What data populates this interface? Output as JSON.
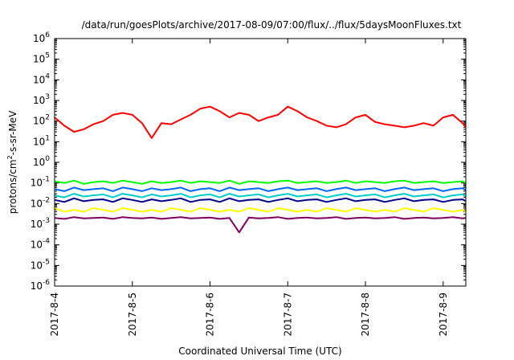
{
  "chart_data": {
    "type": "line",
    "title": "/data/run/goesPlots/archive/2017-08-09/07:00/flux/../flux/5daysMoonFluxes.txt",
    "xlabel": "Coordinated Universal Time (UTC)",
    "ylabel_prefix": "protons/cm",
    "ylabel_sup": "2",
    "ylabel_suffix": "-s-sr-MeV",
    "y_scale": "log",
    "ylim": [
      1e-06,
      1000000
    ],
    "y_ticks": [
      {
        "base": "10",
        "exp": "-6",
        "value": 1e-06
      },
      {
        "base": "10",
        "exp": "-5",
        "value": 1e-05
      },
      {
        "base": "10",
        "exp": "-4",
        "value": 0.0001
      },
      {
        "base": "10",
        "exp": "-3",
        "value": 0.001
      },
      {
        "base": "10",
        "exp": "-2",
        "value": 0.01
      },
      {
        "base": "10",
        "exp": "-1",
        "value": 0.1
      },
      {
        "base": "10",
        "exp": "0",
        "value": 1
      },
      {
        "base": "10",
        "exp": "1",
        "value": 10
      },
      {
        "base": "10",
        "exp": "2",
        "value": 100
      },
      {
        "base": "10",
        "exp": "3",
        "value": 1000
      },
      {
        "base": "10",
        "exp": "4",
        "value": 10000
      },
      {
        "base": "10",
        "exp": "5",
        "value": 100000
      },
      {
        "base": "10",
        "exp": "6",
        "value": 1000000
      }
    ],
    "xlim": [
      "2017-08-04T00:00",
      "2017-08-09T07:00"
    ],
    "x_tick_labels": [
      "2017-8-4",
      "2017-8-5",
      "2017-8-6",
      "2017-8-7",
      "2017-8-8",
      "2017-8-9"
    ],
    "x_tick_values": [
      "2017-08-04",
      "2017-08-05",
      "2017-08-06",
      "2017-08-07",
      "2017-08-08",
      "2017-08-09"
    ],
    "grid": false,
    "legend": "none",
    "x": [
      "2017-08-04T00:00",
      "2017-08-04T03:00",
      "2017-08-04T06:00",
      "2017-08-04T09:00",
      "2017-08-04T12:00",
      "2017-08-04T15:00",
      "2017-08-04T18:00",
      "2017-08-04T21:00",
      "2017-08-05T00:00",
      "2017-08-05T03:00",
      "2017-08-05T06:00",
      "2017-08-05T09:00",
      "2017-08-05T12:00",
      "2017-08-05T15:00",
      "2017-08-05T18:00",
      "2017-08-05T21:00",
      "2017-08-06T00:00",
      "2017-08-06T03:00",
      "2017-08-06T06:00",
      "2017-08-06T09:00",
      "2017-08-06T12:00",
      "2017-08-06T15:00",
      "2017-08-06T18:00",
      "2017-08-06T21:00",
      "2017-08-07T00:00",
      "2017-08-07T03:00",
      "2017-08-07T06:00",
      "2017-08-07T09:00",
      "2017-08-07T12:00",
      "2017-08-07T15:00",
      "2017-08-07T18:00",
      "2017-08-07T21:00",
      "2017-08-08T00:00",
      "2017-08-08T03:00",
      "2017-08-08T06:00",
      "2017-08-08T09:00",
      "2017-08-08T12:00",
      "2017-08-08T15:00",
      "2017-08-08T18:00",
      "2017-08-08T21:00",
      "2017-08-09T00:00",
      "2017-08-09T03:00",
      "2017-08-09T06:00",
      "2017-08-09T07:00"
    ],
    "series": [
      {
        "color": "#ff0000",
        "values": [
          150,
          60,
          30,
          40,
          70,
          100,
          200,
          250,
          200,
          80,
          15,
          80,
          70,
          120,
          200,
          400,
          500,
          300,
          150,
          250,
          200,
          100,
          150,
          200,
          500,
          300,
          150,
          100,
          60,
          50,
          70,
          150,
          200,
          90,
          70,
          60,
          50,
          60,
          80,
          60,
          150,
          200,
          80,
          50
        ]
      },
      {
        "color": "#00ff00",
        "values": [
          0.12,
          0.1,
          0.13,
          0.09,
          0.11,
          0.12,
          0.1,
          0.13,
          0.11,
          0.09,
          0.12,
          0.1,
          0.11,
          0.13,
          0.1,
          0.12,
          0.11,
          0.1,
          0.13,
          0.09,
          0.12,
          0.11,
          0.1,
          0.12,
          0.13,
          0.1,
          0.11,
          0.12,
          0.1,
          0.11,
          0.13,
          0.1,
          0.12,
          0.11,
          0.1,
          0.12,
          0.13,
          0.1,
          0.11,
          0.12,
          0.1,
          0.11,
          0.12,
          0.1
        ]
      },
      {
        "color": "#0066ff",
        "values": [
          0.05,
          0.04,
          0.06,
          0.045,
          0.05,
          0.055,
          0.04,
          0.06,
          0.05,
          0.04,
          0.055,
          0.045,
          0.05,
          0.06,
          0.04,
          0.05,
          0.055,
          0.04,
          0.06,
          0.045,
          0.05,
          0.055,
          0.04,
          0.05,
          0.06,
          0.045,
          0.05,
          0.055,
          0.04,
          0.05,
          0.06,
          0.045,
          0.05,
          0.055,
          0.04,
          0.05,
          0.06,
          0.045,
          0.05,
          0.055,
          0.04,
          0.05,
          0.055,
          0.045
        ]
      },
      {
        "color": "#00cccc",
        "values": [
          0.025,
          0.02,
          0.03,
          0.022,
          0.025,
          0.028,
          0.02,
          0.03,
          0.025,
          0.02,
          0.028,
          0.022,
          0.025,
          0.03,
          0.02,
          0.025,
          0.028,
          0.02,
          0.03,
          0.022,
          0.025,
          0.028,
          0.02,
          0.025,
          0.03,
          0.022,
          0.025,
          0.028,
          0.02,
          0.025,
          0.03,
          0.022,
          0.025,
          0.028,
          0.02,
          0.025,
          0.03,
          0.022,
          0.025,
          0.028,
          0.02,
          0.025,
          0.028,
          0.022
        ]
      },
      {
        "color": "#00008b",
        "values": [
          0.015,
          0.012,
          0.018,
          0.013,
          0.015,
          0.016,
          0.012,
          0.018,
          0.015,
          0.012,
          0.016,
          0.013,
          0.015,
          0.018,
          0.012,
          0.015,
          0.016,
          0.012,
          0.018,
          0.013,
          0.015,
          0.016,
          0.012,
          0.015,
          0.018,
          0.013,
          0.015,
          0.016,
          0.012,
          0.015,
          0.018,
          0.013,
          0.015,
          0.016,
          0.012,
          0.015,
          0.018,
          0.013,
          0.015,
          0.016,
          0.012,
          0.015,
          0.016,
          0.013
        ]
      },
      {
        "color": "#ffff00",
        "values": [
          0.006,
          0.004,
          0.005,
          0.004,
          0.006,
          0.005,
          0.004,
          0.006,
          0.005,
          0.004,
          0.005,
          0.004,
          0.006,
          0.005,
          0.004,
          0.006,
          0.005,
          0.004,
          0.005,
          0.004,
          0.006,
          0.005,
          0.004,
          0.006,
          0.005,
          0.004,
          0.005,
          0.004,
          0.006,
          0.005,
          0.004,
          0.006,
          0.005,
          0.004,
          0.005,
          0.004,
          0.006,
          0.005,
          0.004,
          0.006,
          0.005,
          0.004,
          0.005,
          0.004
        ]
      },
      {
        "color": "#800060",
        "values": [
          0.002,
          0.0018,
          0.0022,
          0.0019,
          0.002,
          0.0021,
          0.0018,
          0.0022,
          0.002,
          0.0019,
          0.0021,
          0.0018,
          0.002,
          0.0022,
          0.0019,
          0.002,
          0.0021,
          0.0018,
          0.002,
          0.0004,
          0.0021,
          0.0019,
          0.002,
          0.0022,
          0.0018,
          0.002,
          0.0021,
          0.0019,
          0.002,
          0.0022,
          0.0018,
          0.002,
          0.0021,
          0.0019,
          0.002,
          0.0022,
          0.0018,
          0.002,
          0.0021,
          0.0019,
          0.002,
          0.0022,
          0.0019,
          0.002
        ]
      }
    ]
  }
}
